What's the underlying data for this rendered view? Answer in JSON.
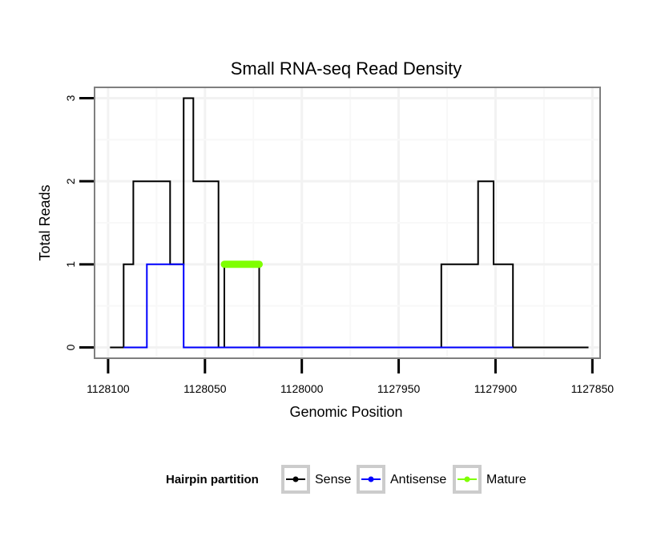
{
  "chart_data": {
    "type": "line",
    "title": "Small RNA-seq Read Density",
    "xlabel": "Genomic Position",
    "ylabel": "Total Reads",
    "xlim": [
      1128107,
      1127846
    ],
    "x_reversed": true,
    "ylim": [
      -0.13,
      3.13
    ],
    "x_ticks": [
      1128100,
      1128050,
      1128000,
      1127950,
      1127900,
      1127850
    ],
    "x_tick_labels": [
      "1128100",
      "1128050",
      "1128000",
      "1127950",
      "1127900",
      "1127850"
    ],
    "y_ticks": [
      0,
      1,
      2,
      3
    ],
    "y_tick_labels": [
      "0",
      "1",
      "2",
      "3"
    ],
    "grid": true,
    "legend": {
      "title": "Hairpin partition",
      "position": "bottom",
      "entries": [
        "Sense",
        "Antisense",
        "Mature"
      ]
    },
    "series": [
      {
        "name": "Sense",
        "color": "#000000",
        "step_points": [
          [
            1128099,
            0
          ],
          [
            1128092,
            0
          ],
          [
            1128092,
            1
          ],
          [
            1128087,
            1
          ],
          [
            1128087,
            2
          ],
          [
            1128068,
            2
          ],
          [
            1128068,
            1
          ],
          [
            1128061,
            1
          ],
          [
            1128061,
            3
          ],
          [
            1128056,
            3
          ],
          [
            1128056,
            2
          ],
          [
            1128043,
            2
          ],
          [
            1128043,
            0
          ],
          [
            1128040,
            0
          ],
          [
            1128040,
            1
          ],
          [
            1128022,
            1
          ],
          [
            1128022,
            0
          ],
          [
            1127928,
            0
          ],
          [
            1127928,
            1
          ],
          [
            1127909,
            1
          ],
          [
            1127909,
            2
          ],
          [
            1127901,
            2
          ],
          [
            1127901,
            1
          ],
          [
            1127891,
            1
          ],
          [
            1127891,
            0
          ],
          [
            1127852,
            0
          ]
        ]
      },
      {
        "name": "Antisense",
        "color": "#0000ff",
        "step_points": [
          [
            1128092,
            0
          ],
          [
            1128080,
            0
          ],
          [
            1128080,
            1
          ],
          [
            1128061,
            1
          ],
          [
            1128061,
            0
          ],
          [
            1128040,
            0
          ],
          [
            1128022,
            0
          ],
          [
            1127928,
            0
          ],
          [
            1127891,
            0
          ]
        ]
      },
      {
        "name": "Mature",
        "color": "#7fff00",
        "step_points": [
          [
            1128040,
            1
          ],
          [
            1128022,
            1
          ]
        ]
      }
    ]
  }
}
